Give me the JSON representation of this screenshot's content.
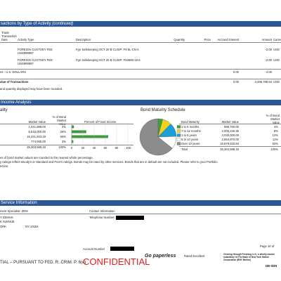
{
  "transactions": {
    "title": "sactions by Type of Activity",
    "title_suffix": "(continued)",
    "columns": {
      "date": "Trade",
      "date2": "Transaction",
      "date3": "Date",
      "activity": "Activity Type",
      "description": "Description",
      "quantity": "Quantity",
      "price": "Price",
      "accrued": "Accrued Interest",
      "amount": "Amount",
      "currency": "Currency"
    },
    "rows": [
      {
        "activity": "FOREIGN CUSTODY FEE",
        "activity2": "USD999997",
        "description": "Fgn Safekeeping OCT 20 B CUSIP: F9 5L-CN-4",
        "amount": "-2.00",
        "currency": "USD"
      },
      {
        "activity": "FOREIGN CUSTODY FEE",
        "activity2": "USD999997",
        "description": "Fgn Safekeeping OCT 20 B CUSIP: F63669-15-6",
        "amount": "-2.00",
        "currency": "USD"
      }
    ],
    "subtotal": {
      "label": "ns - U.S. DOLLARS",
      "accrued": "0.00",
      "amount": "-4.00"
    },
    "total": {
      "label": "alue of Transactions",
      "accrued": "0.00",
      "amount": "3,496,788.64",
      "currency": "USD"
    },
    "note": "and quantity displayed may have been rounded."
  },
  "income": {
    "title": "Income Analysis",
    "quality": {
      "title": "ality",
      "h_mv": "Market Value",
      "h_pct": "% of Bond Market Value",
      "h_chart": "Percent of Fixed Income",
      "rows": [
        {
          "mv": "1,041,885.00",
          "pct": "4%"
        },
        {
          "mv": "6,516,000.00",
          "pct": "26%"
        },
        {
          "mv": "16,431,843.19",
          "pct": "65%"
        },
        {
          "mv": "774,060.00",
          "pct": "3%"
        }
      ],
      "total": {
        "mv": "25,363,588.19",
        "pct": "100%"
      },
      "ticks": [
        0,
        20,
        40,
        60,
        80,
        100
      ]
    },
    "maturity": {
      "title": "Bond Maturity Schedule",
      "h_label": "Bond Maturity",
      "h_mv": "Market Value",
      "h_pct": "% of Bond Market Value",
      "rows": [
        {
          "label": "1 to 6 months",
          "mv": "998,750.00",
          "pct": "4%",
          "color": "#3aa63a"
        },
        {
          "label": "7 to 12 months",
          "mv": "2,000,240.35",
          "pct": "8%",
          "color": "#f2d21b"
        },
        {
          "label": "1 to 5 years",
          "mv": "3,030,000.00",
          "pct": "12%",
          "color": "#1aa0d8"
        },
        {
          "label": "6 to 10 years",
          "mv": "2,854,870.00",
          "pct": "11%",
          "color": "#ffffff"
        },
        {
          "label": "Over 10 years",
          "mv": "15,879,616.84",
          "pct": "63%",
          "color": "#8c8c8c"
        }
      ],
      "total": {
        "label": "Total",
        "mv": "25,363,588.19",
        "pct": "100%"
      }
    },
    "notes": [
      "es of bond market values are rounded to the nearest whole percentage.",
      "y ratings reflect Moody's or Standard and Poor's ratings. Bonds may be rated by other services. Bonds that are in default are not included. Please refer to your Portfolio",
      "ection."
    ]
  },
  "service": {
    "title": "Service Information",
    "specialist": "ment Specialist: ZEM",
    "contact": "Contact Information",
    "name": "Y ZEMAN",
    "phone": "Telephone Number:",
    "addr1": "K AVENUE",
    "addr2": "ORK",
    "addr3": "NY 10154"
  },
  "footer": {
    "page": "Page 10 of",
    "account": "Account Number",
    "legal": "TIAL – PURSUANT TO FED. R. CRIM. P. 6(e)",
    "stamp": "CONFIDENTIAL",
    "paperless": "Go paperless",
    "award": "Rated Excellent",
    "clearing": "Clearing through Pershing LLC, a wholly owned subsidiary of The Bank of New York Mellon Corporation (BNY Mellon)",
    "code": "DB-SDN"
  }
}
